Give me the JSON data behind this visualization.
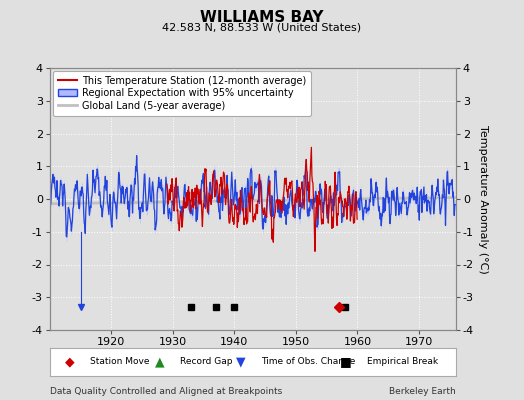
{
  "title": "WILLIAMS BAY",
  "subtitle": "42.583 N, 88.533 W (United States)",
  "ylabel": "Temperature Anomaly (°C)",
  "xlabel_note": "Data Quality Controlled and Aligned at Breakpoints",
  "credit": "Berkeley Earth",
  "ylim": [
    -4,
    4
  ],
  "xlim": [
    1910,
    1976
  ],
  "xticks": [
    1920,
    1930,
    1940,
    1950,
    1960,
    1970
  ],
  "yticks": [
    -4,
    -3,
    -2,
    -1,
    0,
    1,
    2,
    3,
    4
  ],
  "bg_color": "#e0e0e0",
  "plot_bg_color": "#e0e0e0",
  "grid_color": "#ffffff",
  "grid_style": "dotted",
  "empirical_breaks": [
    1933,
    1937,
    1940,
    1958
  ],
  "station_moves": [
    1957
  ],
  "record_gaps": [],
  "obs_changes_blue": [
    1915
  ],
  "red_start_year": 1929,
  "red_end_year": 1960,
  "seed": 12345
}
